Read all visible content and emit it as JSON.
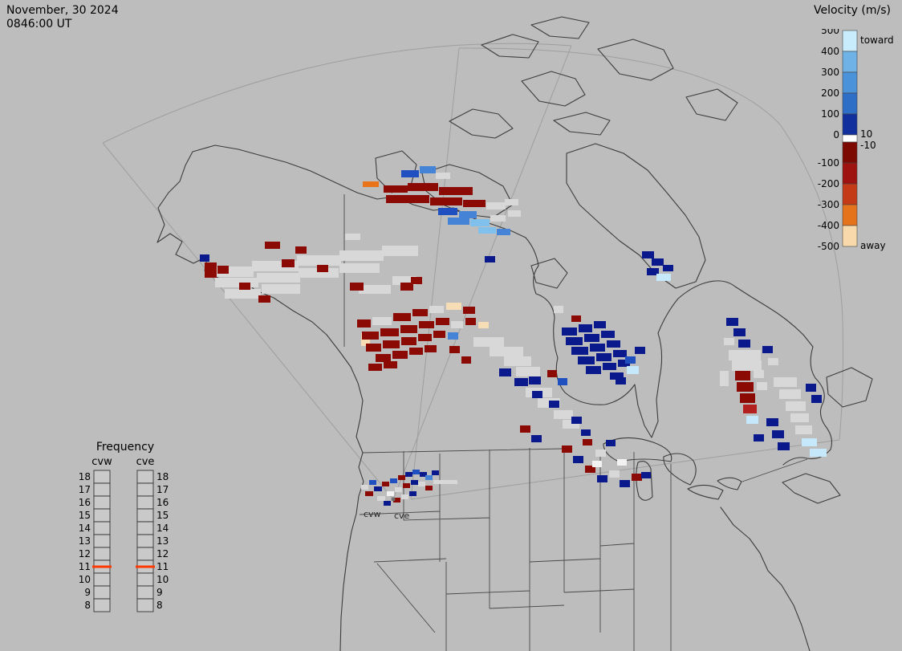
{
  "header": {
    "date": "November, 30 2024",
    "time": "0846:00 UT"
  },
  "velocity_legend": {
    "title": "Velocity (m/s)",
    "toward_label": "toward",
    "away_label": "away",
    "ticks": [
      "500",
      "400",
      "300",
      "200",
      "100",
      "0",
      "-100",
      "-200",
      "-300",
      "-400",
      "-500"
    ],
    "near_zero_ticks": [
      "10",
      "-10"
    ],
    "segments": [
      "#c8ecfb",
      "#6fb2e6",
      "#4a92da",
      "#2f6ec6",
      "#11309e",
      "#ffffff",
      "#7c0a02",
      "#9e1310",
      "#c43a16",
      "#e4731c",
      "#f8d9ac"
    ]
  },
  "frequency_legend": {
    "title": "Frequency",
    "columns": [
      "cvw",
      "cve"
    ],
    "ticks": [
      "18",
      "17",
      "16",
      "15",
      "14",
      "13",
      "12",
      "11",
      "10",
      "9",
      "8"
    ],
    "highlight": "11",
    "highlight_color": "#ff3800",
    "box_fill": "#c9c9c9"
  },
  "map_labels": {
    "west": "cvw",
    "east": "cve"
  },
  "colors": {
    "background": "#bdbdbd",
    "outline": "#3c3c3c",
    "fov_line": "#9e9e9e",
    "text": "#000000"
  },
  "cell_colors": {
    "dr": "#8b0b04",
    "r": "#b22020",
    "o": "#e87318",
    "cr": "#f7ddb5",
    "n": "#0a1a8c",
    "b": "#2050c0",
    "mb": "#4583d6",
    "lb": "#7fc0ec",
    "vlb": "#c5e9fa",
    "g": "#d8d8d8",
    "w": "#f2f2f2"
  },
  "cells": [
    [
      452,
      226,
      20,
      7,
      "o"
    ],
    [
      478,
      231,
      30,
      9,
      "dr"
    ],
    [
      508,
      228,
      38,
      10,
      "dr"
    ],
    [
      547,
      233,
      42,
      10,
      "dr"
    ],
    [
      500,
      212,
      22,
      9,
      "b"
    ],
    [
      523,
      207,
      20,
      9,
      "mb"
    ],
    [
      543,
      215,
      18,
      8,
      "g"
    ],
    [
      481,
      243,
      54,
      10,
      "dr"
    ],
    [
      536,
      246,
      40,
      10,
      "dr"
    ],
    [
      577,
      249,
      28,
      9,
      "dr"
    ],
    [
      606,
      252,
      24,
      9,
      "g"
    ],
    [
      629,
      248,
      17,
      8,
      "g"
    ],
    [
      546,
      259,
      24,
      9,
      "b"
    ],
    [
      572,
      263,
      22,
      9,
      "mb"
    ],
    [
      558,
      271,
      27,
      9,
      "mb"
    ],
    [
      586,
      273,
      24,
      9,
      "lb"
    ],
    [
      611,
      268,
      19,
      8,
      "g"
    ],
    [
      596,
      283,
      22,
      8,
      "lb"
    ],
    [
      619,
      285,
      17,
      8,
      "mb"
    ],
    [
      633,
      262,
      16,
      8,
      "g"
    ],
    [
      604,
      319,
      13,
      8,
      "n"
    ],
    [
      258,
      332,
      58,
      13,
      "g"
    ],
    [
      314,
      325,
      58,
      13,
      "g"
    ],
    [
      370,
      318,
      55,
      13,
      "g"
    ],
    [
      423,
      312,
      55,
      13,
      "g"
    ],
    [
      476,
      306,
      45,
      13,
      "g"
    ],
    [
      268,
      346,
      54,
      12,
      "g"
    ],
    [
      320,
      340,
      54,
      12,
      "g"
    ],
    [
      372,
      334,
      50,
      12,
      "g"
    ],
    [
      423,
      328,
      50,
      12,
      "g"
    ],
    [
      280,
      360,
      45,
      12,
      "g"
    ],
    [
      326,
      354,
      48,
      12,
      "g"
    ],
    [
      447,
      355,
      40,
      11,
      "g"
    ],
    [
      489,
      344,
      30,
      11,
      "g"
    ],
    [
      249,
      317,
      12,
      9,
      "n"
    ],
    [
      255,
      327,
      15,
      19,
      "dr"
    ],
    [
      271,
      331,
      14,
      10,
      "dr"
    ],
    [
      330,
      301,
      19,
      9,
      "dr"
    ],
    [
      351,
      323,
      16,
      10,
      "dr"
    ],
    [
      368,
      307,
      14,
      9,
      "dr"
    ],
    [
      430,
      291,
      19,
      8,
      "g"
    ],
    [
      436,
      352,
      17,
      10,
      "dr"
    ],
    [
      499,
      352,
      16,
      10,
      "dr"
    ],
    [
      512,
      345,
      14,
      9,
      "dr"
    ],
    [
      322,
      368,
      15,
      9,
      "dr"
    ],
    [
      298,
      352,
      14,
      9,
      "dr"
    ],
    [
      395,
      330,
      14,
      9,
      "dr"
    ],
    [
      450,
      415,
      11,
      16,
      "cr"
    ],
    [
      445,
      398,
      17,
      10,
      "dr"
    ],
    [
      464,
      395,
      24,
      10,
      "g"
    ],
    [
      490,
      390,
      22,
      10,
      "dr"
    ],
    [
      514,
      385,
      19,
      9,
      "dr"
    ],
    [
      535,
      381,
      18,
      9,
      "g"
    ],
    [
      556,
      377,
      19,
      9,
      "cr"
    ],
    [
      577,
      382,
      15,
      9,
      "dr"
    ],
    [
      451,
      413,
      21,
      10,
      "dr"
    ],
    [
      474,
      409,
      23,
      10,
      "dr"
    ],
    [
      499,
      405,
      21,
      10,
      "dr"
    ],
    [
      522,
      400,
      19,
      9,
      "dr"
    ],
    [
      543,
      396,
      17,
      9,
      "dr"
    ],
    [
      562,
      400,
      15,
      9,
      "g"
    ],
    [
      580,
      396,
      13,
      9,
      "dr"
    ],
    [
      596,
      401,
      13,
      8,
      "cr"
    ],
    [
      456,
      428,
      19,
      10,
      "dr"
    ],
    [
      477,
      424,
      21,
      10,
      "dr"
    ],
    [
      500,
      420,
      19,
      10,
      "dr"
    ],
    [
      521,
      416,
      17,
      9,
      "dr"
    ],
    [
      540,
      412,
      15,
      9,
      "dr"
    ],
    [
      558,
      414,
      13,
      9,
      "mb"
    ],
    [
      468,
      441,
      19,
      10,
      "dr"
    ],
    [
      489,
      437,
      19,
      10,
      "dr"
    ],
    [
      510,
      433,
      17,
      9,
      "dr"
    ],
    [
      529,
      430,
      15,
      9,
      "dr"
    ],
    [
      560,
      431,
      13,
      9,
      "dr"
    ],
    [
      459,
      453,
      17,
      9,
      "dr"
    ],
    [
      478,
      450,
      17,
      9,
      "dr"
    ],
    [
      575,
      444,
      12,
      9,
      "dr"
    ],
    [
      590,
      420,
      38,
      12,
      "g"
    ],
    [
      610,
      432,
      42,
      12,
      "g"
    ],
    [
      628,
      444,
      34,
      12,
      "g"
    ],
    [
      643,
      457,
      30,
      12,
      "g"
    ],
    [
      622,
      459,
      15,
      10,
      "n"
    ],
    [
      641,
      471,
      17,
      10,
      "n"
    ],
    [
      659,
      469,
      15,
      10,
      "n"
    ],
    [
      655,
      483,
      33,
      12,
      "g"
    ],
    [
      670,
      496,
      28,
      12,
      "g"
    ],
    [
      663,
      487,
      13,
      9,
      "n"
    ],
    [
      684,
      499,
      13,
      9,
      "n"
    ],
    [
      690,
      511,
      24,
      11,
      "g"
    ],
    [
      701,
      523,
      21,
      11,
      "g"
    ],
    [
      712,
      519,
      13,
      9,
      "n"
    ],
    [
      695,
      471,
      12,
      9,
      "b"
    ],
    [
      682,
      461,
      12,
      9,
      "dr"
    ],
    [
      700,
      408,
      19,
      10,
      "n"
    ],
    [
      721,
      404,
      17,
      10,
      "n"
    ],
    [
      740,
      400,
      15,
      9,
      "n"
    ],
    [
      705,
      420,
      21,
      10,
      "n"
    ],
    [
      728,
      416,
      19,
      10,
      "n"
    ],
    [
      749,
      412,
      17,
      9,
      "n"
    ],
    [
      712,
      432,
      21,
      10,
      "n"
    ],
    [
      735,
      428,
      19,
      10,
      "n"
    ],
    [
      756,
      424,
      17,
      9,
      "n"
    ],
    [
      720,
      444,
      21,
      10,
      "n"
    ],
    [
      743,
      440,
      19,
      10,
      "n"
    ],
    [
      764,
      436,
      17,
      9,
      "n"
    ],
    [
      730,
      456,
      19,
      10,
      "n"
    ],
    [
      751,
      452,
      17,
      9,
      "n"
    ],
    [
      770,
      448,
      15,
      9,
      "n"
    ],
    [
      760,
      464,
      17,
      9,
      "n"
    ],
    [
      779,
      444,
      13,
      9,
      "b"
    ],
    [
      781,
      456,
      15,
      10,
      "vlb"
    ],
    [
      791,
      432,
      13,
      9,
      "n"
    ],
    [
      690,
      381,
      12,
      9,
      "g"
    ],
    [
      712,
      393,
      12,
      8,
      "dr"
    ],
    [
      767,
      470,
      13,
      9,
      "n"
    ],
    [
      800,
      313,
      15,
      9,
      "n"
    ],
    [
      812,
      322,
      15,
      9,
      "n"
    ],
    [
      806,
      334,
      15,
      9,
      "n"
    ],
    [
      818,
      341,
      18,
      9,
      "vlb"
    ],
    [
      826,
      330,
      13,
      8,
      "n"
    ],
    [
      905,
      396,
      15,
      10,
      "n"
    ],
    [
      914,
      409,
      15,
      10,
      "n"
    ],
    [
      902,
      421,
      13,
      9,
      "g"
    ],
    [
      920,
      423,
      15,
      10,
      "n"
    ],
    [
      908,
      436,
      40,
      13,
      "g"
    ],
    [
      912,
      449,
      37,
      13,
      "g"
    ],
    [
      916,
      462,
      19,
      12,
      "dr"
    ],
    [
      918,
      476,
      21,
      12,
      "dr"
    ],
    [
      922,
      490,
      19,
      12,
      "dr"
    ],
    [
      926,
      504,
      17,
      11,
      "r"
    ],
    [
      939,
      461,
      13,
      10,
      "g"
    ],
    [
      943,
      476,
      13,
      10,
      "g"
    ],
    [
      950,
      431,
      13,
      9,
      "n"
    ],
    [
      957,
      446,
      13,
      9,
      "g"
    ],
    [
      930,
      518,
      15,
      10,
      "vlb"
    ],
    [
      964,
      470,
      29,
      12,
      "g"
    ],
    [
      971,
      485,
      27,
      12,
      "g"
    ],
    [
      979,
      500,
      25,
      12,
      "g"
    ],
    [
      985,
      515,
      23,
      11,
      "g"
    ],
    [
      991,
      530,
      21,
      11,
      "g"
    ],
    [
      955,
      521,
      15,
      10,
      "n"
    ],
    [
      962,
      536,
      15,
      10,
      "n"
    ],
    [
      1004,
      478,
      13,
      10,
      "n"
    ],
    [
      1011,
      492,
      13,
      10,
      "n"
    ],
    [
      999,
      546,
      19,
      10,
      "vlb"
    ],
    [
      1009,
      559,
      21,
      10,
      "vlb"
    ],
    [
      969,
      551,
      15,
      10,
      "n"
    ],
    [
      939,
      541,
      13,
      9,
      "n"
    ],
    [
      897,
      462,
      11,
      19,
      "g"
    ],
    [
      455,
      612,
      10,
      6,
      "dr"
    ],
    [
      466,
      606,
      10,
      6,
      "n"
    ],
    [
      476,
      600,
      9,
      6,
      "dr"
    ],
    [
      486,
      596,
      9,
      6,
      "b"
    ],
    [
      496,
      592,
      9,
      6,
      "dr"
    ],
    [
      505,
      588,
      9,
      6,
      "n"
    ],
    [
      514,
      585,
      9,
      6,
      "b"
    ],
    [
      523,
      588,
      9,
      6,
      "n"
    ],
    [
      470,
      618,
      10,
      6,
      "g"
    ],
    [
      482,
      612,
      9,
      6,
      "w"
    ],
    [
      492,
      607,
      9,
      6,
      "g"
    ],
    [
      502,
      602,
      9,
      6,
      "dr"
    ],
    [
      512,
      598,
      9,
      6,
      "n"
    ],
    [
      521,
      600,
      9,
      6,
      "g"
    ],
    [
      478,
      624,
      9,
      6,
      "n"
    ],
    [
      490,
      620,
      9,
      6,
      "dr"
    ],
    [
      500,
      616,
      9,
      6,
      "g"
    ],
    [
      510,
      612,
      9,
      6,
      "n"
    ],
    [
      530,
      592,
      9,
      6,
      "mb"
    ],
    [
      538,
      586,
      9,
      6,
      "n"
    ],
    [
      460,
      598,
      9,
      6,
      "b"
    ],
    [
      450,
      604,
      9,
      6,
      "g"
    ],
    [
      530,
      605,
      9,
      6,
      "dr"
    ],
    [
      540,
      598,
      30,
      5,
      "g"
    ],
    [
      648,
      530,
      13,
      9,
      "dr"
    ],
    [
      662,
      542,
      13,
      9,
      "n"
    ],
    [
      700,
      555,
      13,
      9,
      "dr"
    ],
    [
      714,
      568,
      13,
      9,
      "n"
    ],
    [
      729,
      580,
      13,
      9,
      "dr"
    ],
    [
      744,
      592,
      13,
      9,
      "n"
    ],
    [
      759,
      586,
      13,
      9,
      "g"
    ],
    [
      772,
      598,
      13,
      9,
      "n"
    ],
    [
      787,
      590,
      13,
      9,
      "dr"
    ],
    [
      742,
      560,
      13,
      9,
      "g"
    ],
    [
      755,
      548,
      12,
      8,
      "n"
    ],
    [
      724,
      535,
      12,
      8,
      "n"
    ],
    [
      769,
      572,
      12,
      8,
      "w"
    ],
    [
      799,
      588,
      12,
      8,
      "n"
    ],
    [
      726,
      547,
      12,
      8,
      "dr"
    ],
    [
      738,
      574,
      12,
      8,
      "w"
    ]
  ]
}
